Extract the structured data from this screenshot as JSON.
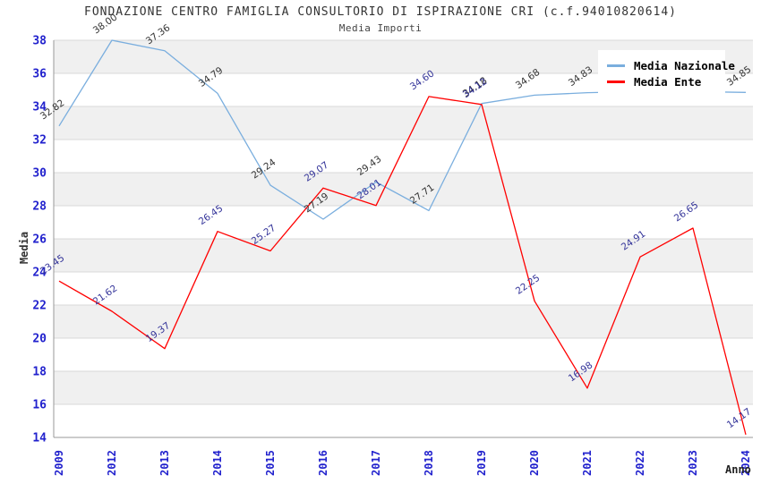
{
  "chart_data": {
    "type": "line",
    "title": "FONDAZIONE CENTRO FAMIGLIA CONSULTORIO DI ISPIRAZIONE CRI (c.f.94010820614)",
    "subtitle": "Media Importi",
    "xlabel": "Anno",
    "ylabel": "Media",
    "ylim": [
      14,
      38
    ],
    "y_tick_step": 2,
    "y_ticks": [
      38,
      36,
      34,
      32,
      30,
      28,
      26,
      24,
      22,
      20,
      18,
      16,
      14
    ],
    "categories": [
      "2009",
      "2012",
      "2013",
      "2014",
      "2015",
      "2016",
      "2017",
      "2018",
      "2019",
      "2020",
      "2021",
      "2022",
      "2023",
      "2024"
    ],
    "series": [
      {
        "name": "Media Nazionale",
        "color": "#7aaede",
        "label_color": "#333333",
        "values": [
          32.82,
          38.0,
          37.36,
          34.79,
          29.24,
          27.19,
          29.43,
          27.71,
          34.18,
          34.68,
          34.83,
          34.9,
          34.9,
          34.85
        ],
        "labels": [
          "32.82",
          "38.00",
          "37.36",
          "34.79",
          "29.24",
          "27.19",
          "29.43",
          "27.71",
          "34.18",
          "34.68",
          "34.83",
          null,
          null,
          "34.85"
        ]
      },
      {
        "name": "Media Ente",
        "color": "#ff0000",
        "label_color": "#333399",
        "values": [
          23.45,
          21.62,
          19.37,
          26.45,
          25.27,
          29.07,
          28.01,
          34.6,
          34.12,
          22.25,
          16.98,
          24.91,
          26.65,
          14.17
        ],
        "labels": [
          "23.45",
          "21.62",
          "19.37",
          "26.45",
          "25.27",
          "29.07",
          "28.01",
          "34.60",
          "34.12",
          "22.25",
          "16.98",
          "24.91",
          "26.65",
          "14.17"
        ]
      }
    ],
    "legend_position": "top-right",
    "grid": {
      "bands": true,
      "band_color": "#f0f0f0",
      "line_color": "#d9d9d9",
      "axis_color": "#999999"
    },
    "tick_color": "#2121cd",
    "axis_title_color": "#333333"
  }
}
